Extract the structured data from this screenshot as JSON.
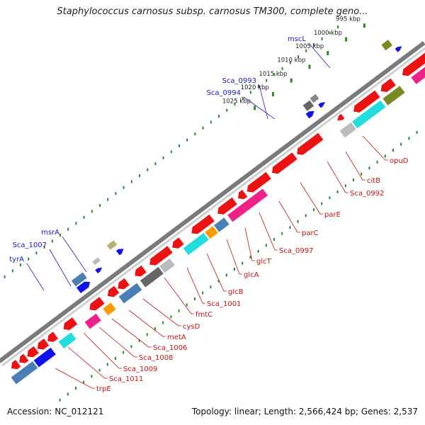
{
  "title": "Staphylococcus carnosus subsp. carnosus TM300, complete geno...",
  "footer": {
    "accession": "Accession: NC_012121",
    "topology": "Topology: linear; Length: 2,566,424 bp; Genes: 2,537"
  },
  "scale_unit": "kbp",
  "ticks": [
    {
      "kbp": 995,
      "label": "995 kbp"
    },
    {
      "kbp": 1000,
      "label": "1000 kbp"
    },
    {
      "kbp": 1005,
      "label": "1005 kbp"
    },
    {
      "kbp": 1010,
      "label": "1010 kbp"
    },
    {
      "kbp": 1015,
      "label": "1015 kbp"
    },
    {
      "kbp": 1020,
      "label": "1020 kbp"
    },
    {
      "kbp": 1025,
      "label": "1025 kbp"
    }
  ],
  "gene_labels_plus": [
    {
      "name": "mscL"
    },
    {
      "name": "Sca_0993"
    },
    {
      "name": "Sca_0994"
    },
    {
      "name": "msrA"
    },
    {
      "name": "Sca_1007"
    },
    {
      "name": "tyrA"
    }
  ],
  "gene_labels_minus": [
    {
      "name": "opuD"
    },
    {
      "name": "citB"
    },
    {
      "name": "Sca_0992"
    },
    {
      "name": "parE"
    },
    {
      "name": "parC"
    },
    {
      "name": "Sca_0997"
    },
    {
      "name": "glcT"
    },
    {
      "name": "glcA"
    },
    {
      "name": "glcB"
    },
    {
      "name": "Sca_1001"
    },
    {
      "name": "fmtC"
    },
    {
      "name": "cysD"
    },
    {
      "name": "metA"
    },
    {
      "name": "Sca_1006"
    },
    {
      "name": "Sca_1008"
    },
    {
      "name": "Sca_1009"
    },
    {
      "name": "Sca_1011"
    },
    {
      "name": "trpE"
    }
  ],
  "colors": {
    "backbone": "#7a7a7a",
    "plus_label": "#1a1acc",
    "minus_label": "#cc1111",
    "gc_dots": "#2a8a2a",
    "cds": "#ee1111",
    "cog_olive": "#7a8a22",
    "cog_cyan": "#22dddd",
    "cog_magenta": "#ee2288",
    "cog_steel": "#4a7fb5",
    "cog_orange": "#ff9900",
    "cog_darkgray": "#666666",
    "cog_lightgray": "#bbbbbb",
    "cog_khaki": "#b8b070",
    "cog_blue": "#1111ee"
  }
}
